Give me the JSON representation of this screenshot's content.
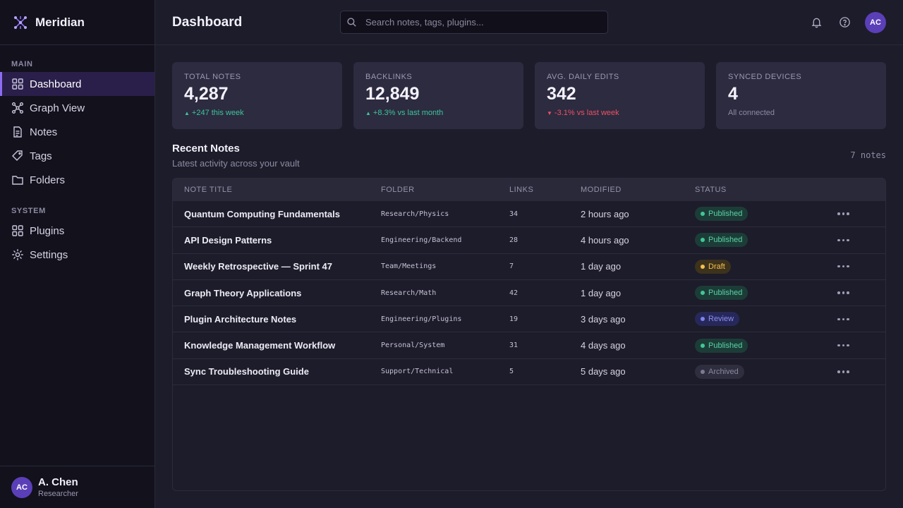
{
  "app": {
    "name": "Meridian"
  },
  "sidebar": {
    "main_label": "MAIN",
    "system_label": "SYSTEM",
    "main_items": [
      {
        "label": "Dashboard",
        "icon": "grid-icon",
        "active": true
      },
      {
        "label": "Graph View",
        "icon": "graph-icon"
      },
      {
        "label": "Notes",
        "icon": "document-icon"
      },
      {
        "label": "Tags",
        "icon": "tag-icon"
      },
      {
        "label": "Folders",
        "icon": "folder-icon"
      }
    ],
    "system_items": [
      {
        "label": "Plugins",
        "icon": "plugins-icon"
      },
      {
        "label": "Settings",
        "icon": "gear-icon"
      }
    ],
    "user": {
      "initials": "AC",
      "name": "A. Chen",
      "role": "Researcher"
    }
  },
  "header": {
    "title": "Dashboard",
    "search_placeholder": "Search notes, tags, plugins...",
    "avatar_initials": "AC"
  },
  "stats": [
    {
      "label": "TOTAL NOTES",
      "value": "4,287",
      "sub": "+247 this week",
      "trend": "up"
    },
    {
      "label": "BACKLINKS",
      "value": "12,849",
      "sub": "+8.3% vs last month",
      "trend": "up"
    },
    {
      "label": "AVG. DAILY EDITS",
      "value": "342",
      "sub": "-3.1% vs last week",
      "trend": "down"
    },
    {
      "label": "SYNCED DEVICES",
      "value": "4",
      "sub": "All connected",
      "trend": "none"
    }
  ],
  "recent": {
    "title": "Recent Notes",
    "subtitle": "Latest activity across your vault",
    "count": "7 notes",
    "columns": [
      "NOTE TITLE",
      "FOLDER",
      "LINKS",
      "MODIFIED",
      "STATUS"
    ],
    "rows": [
      {
        "title": "Quantum Computing Fundamentals",
        "folder": "Research/Physics",
        "links": "34",
        "modified": "2 hours ago",
        "status": "Published"
      },
      {
        "title": "API Design Patterns",
        "folder": "Engineering/Backend",
        "links": "28",
        "modified": "4 hours ago",
        "status": "Published"
      },
      {
        "title": "Weekly Retrospective — Sprint 47",
        "folder": "Team/Meetings",
        "links": "7",
        "modified": "1 day ago",
        "status": "Draft"
      },
      {
        "title": "Graph Theory Applications",
        "folder": "Research/Math",
        "links": "42",
        "modified": "1 day ago",
        "status": "Published"
      },
      {
        "title": "Plugin Architecture Notes",
        "folder": "Engineering/Plugins",
        "links": "19",
        "modified": "3 days ago",
        "status": "Review"
      },
      {
        "title": "Knowledge Management Workflow",
        "folder": "Personal/System",
        "links": "31",
        "modified": "4 days ago",
        "status": "Published"
      },
      {
        "title": "Sync Troubleshooting Guide",
        "folder": "Support/Technical",
        "links": "5",
        "modified": "5 days ago",
        "status": "Archived"
      }
    ]
  },
  "colors": {
    "accent": "#8b6cf2",
    "positive": "#3ec49a",
    "negative": "#ef5161"
  }
}
